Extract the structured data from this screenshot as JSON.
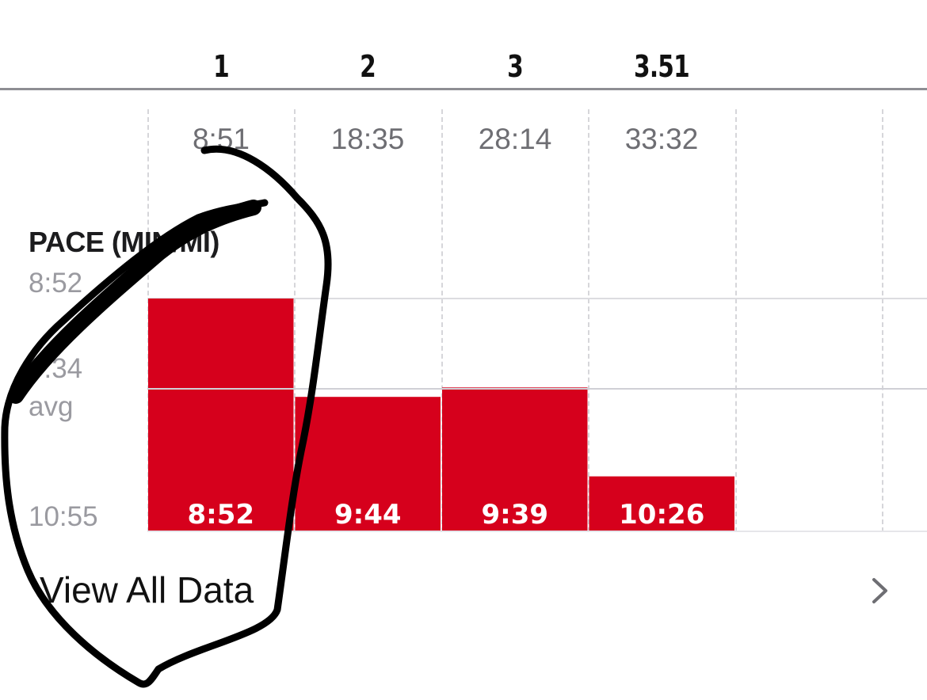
{
  "splits": {
    "miles": [
      "1",
      "2",
      "3",
      "3.51"
    ],
    "times": [
      "8:51",
      "18:35",
      "28:14",
      "33:32"
    ]
  },
  "chart": {
    "title": "PACE (MIN/MI)",
    "y_top_label": "8:52",
    "y_avg_value": "9:34",
    "y_avg_caption": "avg",
    "y_bottom_label": "10:55"
  },
  "chart_data": {
    "type": "bar",
    "title": "PACE (MIN/MI)",
    "categories": [
      "1",
      "2",
      "3",
      "3.51"
    ],
    "values": [
      8.867,
      9.733,
      9.65,
      10.433
    ],
    "value_labels": [
      "8:52",
      "9:44",
      "9:39",
      "10:26"
    ],
    "ylim": [
      10.917,
      8.867
    ],
    "y_ticks": [
      "8:52",
      "9:34 avg",
      "10:55"
    ],
    "avg": 9.567,
    "inverted": true,
    "grid": true,
    "color": "#d6001c"
  },
  "actions": {
    "view_all_label": "View All Data"
  },
  "colors": {
    "bar": "#d6001c",
    "annotation_ink": "#000000"
  },
  "icons": {
    "chevron": "chevron-right-icon"
  }
}
